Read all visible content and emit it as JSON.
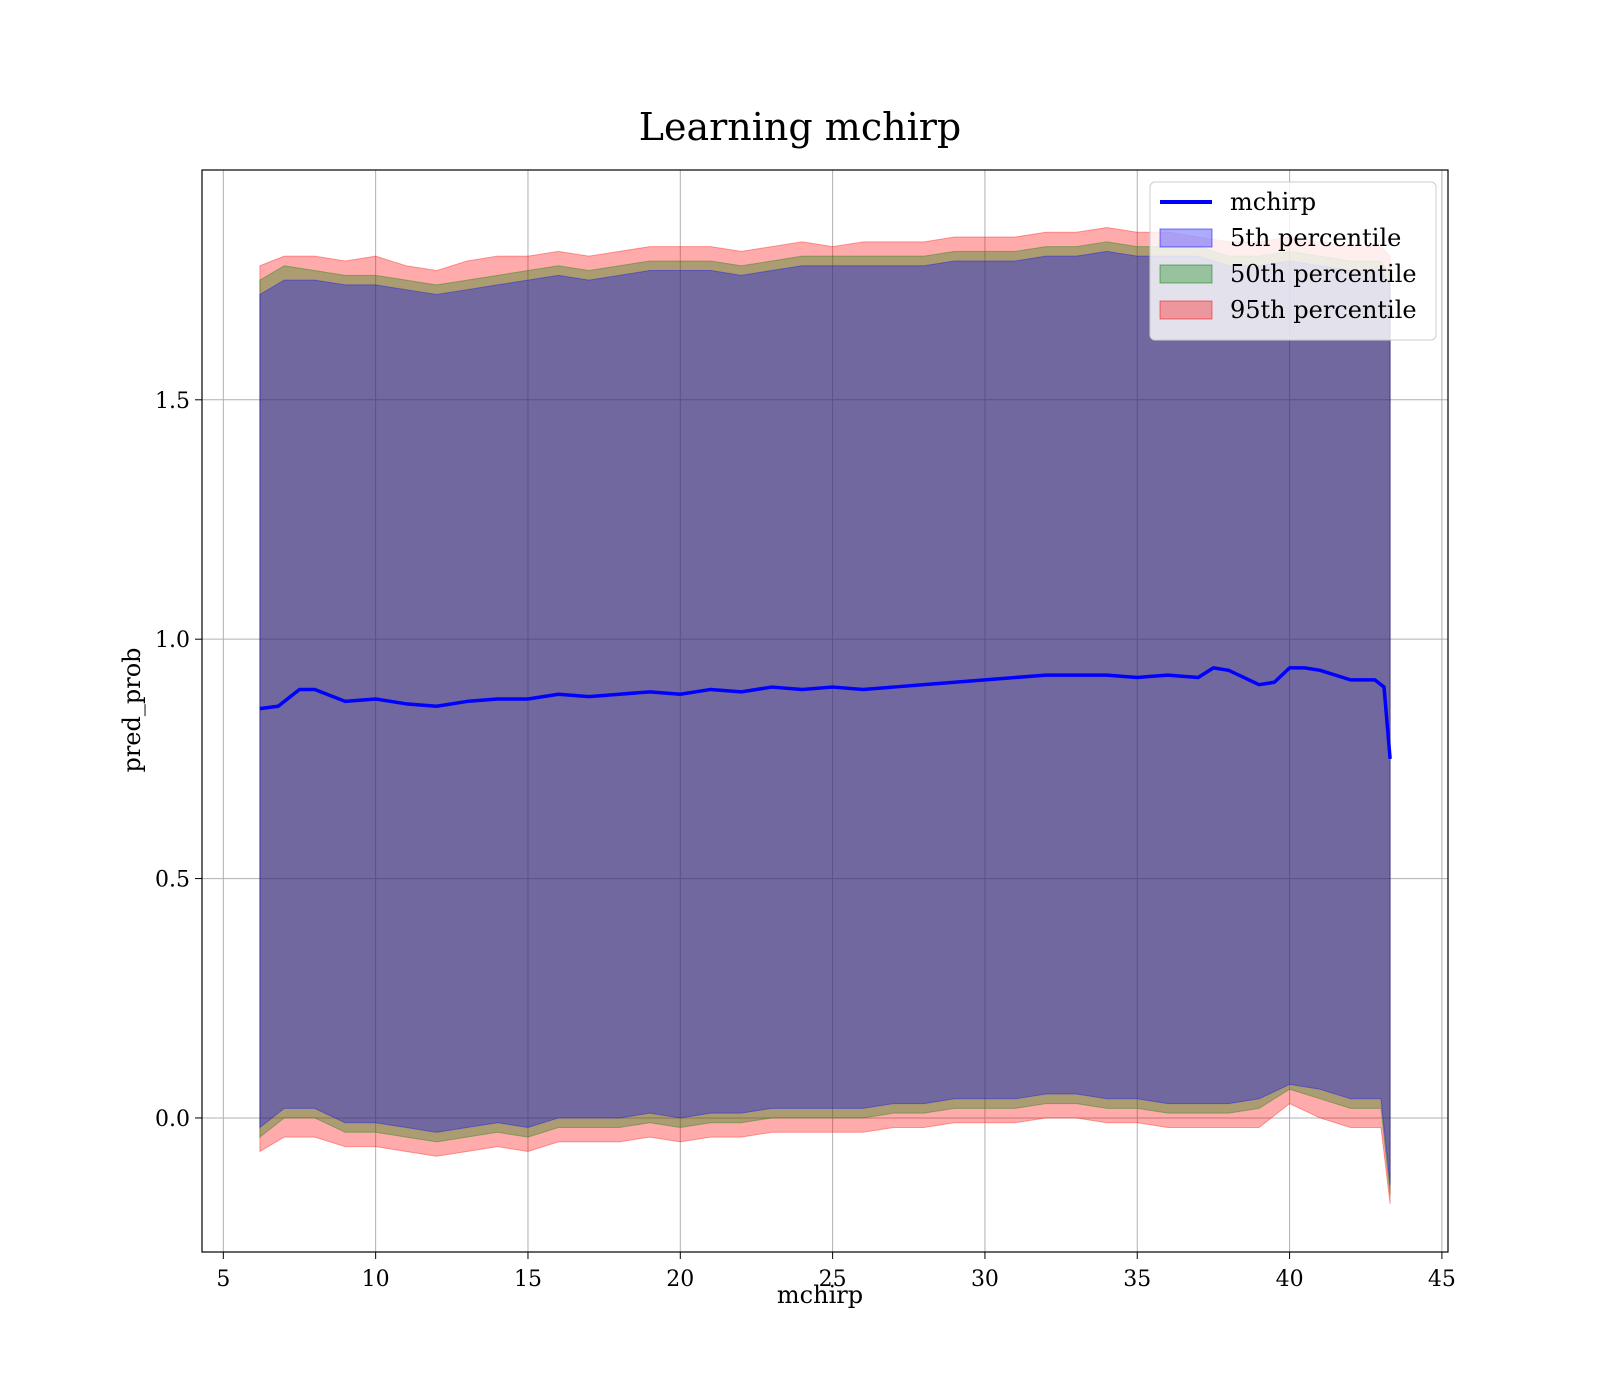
{
  "chart_data": {
    "type": "area",
    "title": "Learning mchirp",
    "xlabel": "mchirp",
    "ylabel": "pred_prob",
    "xlim": [
      4.3,
      45.2
    ],
    "ylim": [
      -0.28,
      1.98
    ],
    "xticks": [
      5,
      10,
      15,
      20,
      25,
      30,
      35,
      40,
      45
    ],
    "yticks": [
      0.0,
      0.5,
      1.0,
      1.5
    ],
    "ytick_labels": [
      "0.0",
      "0.5",
      "1.0",
      "1.5"
    ],
    "grid": true,
    "legend_placement": "upper-right",
    "legend": [
      {
        "label": "mchirp",
        "kind": "line",
        "color": "#0000ff"
      },
      {
        "label": "5th percentile",
        "kind": "patch",
        "color": "#0000ff"
      },
      {
        "label": "50th percentile",
        "kind": "patch",
        "color": "#008000"
      },
      {
        "label": "95th percentile",
        "kind": "patch",
        "color": "#ff0000"
      }
    ],
    "line": {
      "name": "mchirp",
      "color": "#0000ff",
      "x": [
        6.2,
        6.8,
        7.5,
        8.0,
        9.0,
        10.0,
        11.0,
        12.0,
        13.0,
        14.0,
        15.0,
        16.0,
        17.0,
        18.0,
        19.0,
        20.0,
        21.0,
        22.0,
        23.0,
        24.0,
        25.0,
        26.0,
        27.0,
        28.0,
        29.0,
        30.0,
        31.0,
        32.0,
        33.0,
        34.0,
        35.0,
        36.0,
        37.0,
        37.5,
        38.0,
        39.0,
        39.5,
        40.0,
        40.5,
        41.0,
        42.0,
        42.8,
        43.1,
        43.3
      ],
      "y": [
        0.855,
        0.86,
        0.895,
        0.895,
        0.87,
        0.875,
        0.865,
        0.86,
        0.87,
        0.875,
        0.875,
        0.885,
        0.88,
        0.885,
        0.89,
        0.885,
        0.895,
        0.89,
        0.9,
        0.895,
        0.9,
        0.895,
        0.9,
        0.905,
        0.91,
        0.915,
        0.92,
        0.925,
        0.925,
        0.925,
        0.92,
        0.925,
        0.92,
        0.94,
        0.935,
        0.905,
        0.91,
        0.94,
        0.94,
        0.935,
        0.915,
        0.915,
        0.9,
        0.75
      ]
    },
    "bands": [
      {
        "name": "95th percentile",
        "color": "#ff0000",
        "x": [
          6.2,
          7.0,
          8.0,
          9.0,
          10.0,
          11.0,
          12.0,
          13.0,
          14.0,
          15.0,
          16.0,
          17.0,
          18.0,
          19.0,
          20.0,
          21.0,
          22.0,
          23.0,
          24.0,
          25.0,
          26.0,
          27.0,
          28.0,
          29.0,
          30.0,
          31.0,
          32.0,
          33.0,
          34.0,
          35.0,
          36.0,
          37.0,
          38.0,
          39.0,
          40.0,
          41.0,
          42.0,
          43.0,
          43.3
        ],
        "upper": [
          1.78,
          1.8,
          1.8,
          1.79,
          1.8,
          1.78,
          1.77,
          1.79,
          1.8,
          1.8,
          1.81,
          1.8,
          1.81,
          1.82,
          1.82,
          1.82,
          1.81,
          1.82,
          1.83,
          1.82,
          1.83,
          1.83,
          1.83,
          1.84,
          1.84,
          1.84,
          1.85,
          1.85,
          1.86,
          1.85,
          1.85,
          1.84,
          1.83,
          1.83,
          1.84,
          1.83,
          1.82,
          1.82,
          1.8
        ],
        "lower": [
          -0.07,
          -0.04,
          -0.04,
          -0.06,
          -0.06,
          -0.07,
          -0.08,
          -0.07,
          -0.06,
          -0.07,
          -0.05,
          -0.05,
          -0.05,
          -0.04,
          -0.05,
          -0.04,
          -0.04,
          -0.03,
          -0.03,
          -0.03,
          -0.03,
          -0.02,
          -0.02,
          -0.01,
          -0.01,
          -0.01,
          0.0,
          0.0,
          -0.01,
          -0.01,
          -0.02,
          -0.02,
          -0.02,
          -0.02,
          0.03,
          0.0,
          -0.02,
          -0.02,
          -0.18
        ]
      },
      {
        "name": "50th percentile",
        "color": "#008000",
        "x": [
          6.2,
          7.0,
          8.0,
          9.0,
          10.0,
          11.0,
          12.0,
          13.0,
          14.0,
          15.0,
          16.0,
          17.0,
          18.0,
          19.0,
          20.0,
          21.0,
          22.0,
          23.0,
          24.0,
          25.0,
          26.0,
          27.0,
          28.0,
          29.0,
          30.0,
          31.0,
          32.0,
          33.0,
          34.0,
          35.0,
          36.0,
          37.0,
          38.0,
          39.0,
          40.0,
          41.0,
          42.0,
          43.0,
          43.3
        ],
        "upper": [
          1.75,
          1.78,
          1.77,
          1.76,
          1.76,
          1.75,
          1.74,
          1.75,
          1.76,
          1.77,
          1.78,
          1.77,
          1.78,
          1.79,
          1.79,
          1.79,
          1.78,
          1.79,
          1.8,
          1.8,
          1.8,
          1.8,
          1.8,
          1.81,
          1.81,
          1.81,
          1.82,
          1.82,
          1.83,
          1.82,
          1.82,
          1.82,
          1.8,
          1.8,
          1.81,
          1.8,
          1.79,
          1.79,
          1.76
        ],
        "lower": [
          -0.04,
          0.0,
          0.0,
          -0.03,
          -0.03,
          -0.04,
          -0.05,
          -0.04,
          -0.03,
          -0.04,
          -0.02,
          -0.02,
          -0.02,
          -0.01,
          -0.02,
          -0.01,
          -0.01,
          0.0,
          0.0,
          0.0,
          0.0,
          0.01,
          0.01,
          0.02,
          0.02,
          0.02,
          0.03,
          0.03,
          0.02,
          0.02,
          0.01,
          0.01,
          0.01,
          0.02,
          0.06,
          0.04,
          0.02,
          0.02,
          -0.16
        ]
      },
      {
        "name": "5th percentile",
        "color": "#0000ff",
        "x": [
          6.2,
          7.0,
          8.0,
          9.0,
          10.0,
          11.0,
          12.0,
          13.0,
          14.0,
          15.0,
          16.0,
          17.0,
          18.0,
          19.0,
          20.0,
          21.0,
          22.0,
          23.0,
          24.0,
          25.0,
          26.0,
          27.0,
          28.0,
          29.0,
          30.0,
          31.0,
          32.0,
          33.0,
          34.0,
          35.0,
          36.0,
          37.0,
          38.0,
          39.0,
          40.0,
          41.0,
          42.0,
          43.0,
          43.3
        ],
        "upper": [
          1.72,
          1.75,
          1.75,
          1.74,
          1.74,
          1.73,
          1.72,
          1.73,
          1.74,
          1.75,
          1.76,
          1.75,
          1.76,
          1.77,
          1.77,
          1.77,
          1.76,
          1.77,
          1.78,
          1.78,
          1.78,
          1.78,
          1.78,
          1.79,
          1.79,
          1.79,
          1.8,
          1.8,
          1.81,
          1.8,
          1.8,
          1.8,
          1.78,
          1.78,
          1.79,
          1.78,
          1.77,
          1.77,
          1.74
        ],
        "lower": [
          -0.02,
          0.02,
          0.02,
          -0.01,
          -0.01,
          -0.02,
          -0.03,
          -0.02,
          -0.01,
          -0.02,
          0.0,
          0.0,
          0.0,
          0.01,
          0.0,
          0.01,
          0.01,
          0.02,
          0.02,
          0.02,
          0.02,
          0.03,
          0.03,
          0.04,
          0.04,
          0.04,
          0.05,
          0.05,
          0.04,
          0.04,
          0.03,
          0.03,
          0.03,
          0.04,
          0.07,
          0.06,
          0.04,
          0.04,
          -0.14
        ]
      }
    ]
  }
}
